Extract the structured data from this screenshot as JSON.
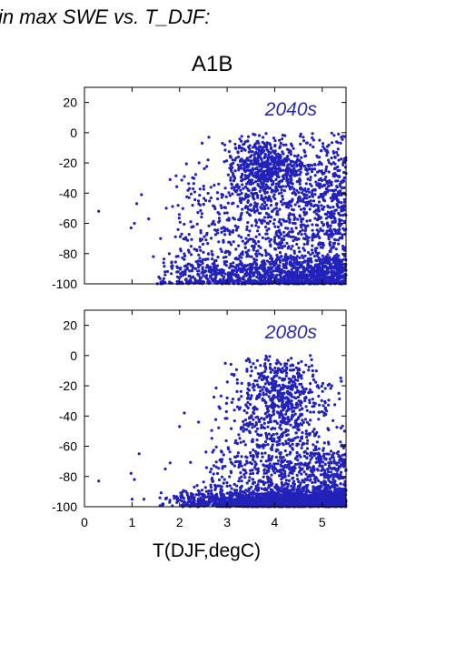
{
  "header": {
    "text": "in max SWE vs. T_DJF:"
  },
  "scenario_title": "A1B",
  "xaxis_label": "T(DJF,degC)",
  "colors": {
    "points": "#2222bb",
    "axis": "#000000",
    "panel_label": "#2a2aaa"
  },
  "chart_data": [
    {
      "type": "scatter",
      "panel_label": "2040s",
      "xlim": [
        0,
        5.5
      ],
      "ylim": [
        -100,
        30
      ],
      "xticks": [
        0,
        1,
        2,
        3,
        4,
        5
      ],
      "yticks": [
        20,
        0,
        -20,
        -40,
        -60,
        -80,
        -100
      ],
      "xtick_labels_shown": false,
      "grid": false,
      "points": [
        [
          0.3,
          -52
        ],
        [
          0.98,
          -63
        ],
        [
          1.05,
          -60
        ],
        [
          1.1,
          -47
        ],
        [
          1.2,
          -41
        ],
        [
          1.35,
          -57
        ],
        [
          1.45,
          -82
        ],
        [
          1.6,
          -70
        ],
        [
          1.72,
          -50
        ],
        [
          1.8,
          -31
        ],
        [
          2.1,
          -29
        ],
        [
          2.6,
          -18
        ],
        [
          2.9,
          -7
        ],
        [
          3.3,
          -10
        ],
        [
          3.55,
          -1
        ],
        [
          3.75,
          -22
        ],
        [
          3.9,
          -28
        ],
        [
          4.1,
          -5
        ],
        [
          4.3,
          -13
        ],
        [
          4.6,
          -3
        ],
        [
          4.75,
          -8
        ],
        [
          5.3,
          -6
        ],
        [
          5.4,
          -3
        ]
      ],
      "sample_distribution": {
        "description": "dense cloud of several thousand points, strongest near -100 for T above 3 degC, a cluster near (3.8, -22)",
        "clusters": [
          {
            "n": 1300,
            "x_range": [
              1.4,
              5.5
            ],
            "x_skew": 0.55,
            "y_center": -95,
            "y_spread": 7,
            "y_min": -100
          },
          {
            "n": 950,
            "x_range": [
              1.8,
              5.5
            ],
            "x_skew": 0.6,
            "y_center": -62,
            "y_spread": 22,
            "y_min": -100
          },
          {
            "n": 380,
            "x_center": 3.8,
            "x_spread": 0.35,
            "y_center": -22,
            "y_spread": 9,
            "y_min": -100
          },
          {
            "n": 450,
            "x_range": [
              3.0,
              5.5
            ],
            "x_skew": 0.8,
            "y_center": -30,
            "y_spread": 16,
            "y_min": -100
          }
        ]
      }
    },
    {
      "type": "scatter",
      "panel_label": "2080s",
      "xlim": [
        0,
        5.5
      ],
      "ylim": [
        -100,
        30
      ],
      "xticks": [
        0,
        1,
        2,
        3,
        4,
        5
      ],
      "yticks": [
        20,
        0,
        -20,
        -40,
        -60,
        -80,
        -100
      ],
      "xtick_labels_shown": true,
      "grid": false,
      "points": [
        [
          0.3,
          -83
        ],
        [
          0.98,
          -78
        ],
        [
          1.05,
          -82
        ],
        [
          1.15,
          -65
        ],
        [
          1.0,
          -95
        ],
        [
          1.25,
          -95
        ],
        [
          1.7,
          -75
        ],
        [
          1.8,
          -71
        ],
        [
          2.1,
          -38
        ],
        [
          2.0,
          -47
        ],
        [
          2.4,
          -44
        ],
        [
          2.85,
          -35
        ],
        [
          3.1,
          -31
        ],
        [
          3.3,
          -27
        ],
        [
          3.5,
          -28
        ],
        [
          3.55,
          -19
        ],
        [
          3.6,
          -8
        ],
        [
          4.2,
          -10
        ],
        [
          4.5,
          -5
        ],
        [
          4.75,
          0
        ],
        [
          4.8,
          -10
        ],
        [
          5.2,
          -20
        ],
        [
          5.35,
          -25
        ],
        [
          5.4,
          -17
        ]
      ],
      "sample_distribution": {
        "description": "very dense band at -95 to -100 from 1.5 degC upward, with a cloud reaching up to 0 for T 3.5-5 degC",
        "clusters": [
          {
            "n": 2200,
            "x_range": [
              1.5,
              5.5
            ],
            "x_skew": 0.45,
            "y_center": -97,
            "y_spread": 4,
            "y_min": -100
          },
          {
            "n": 700,
            "x_range": [
              2.5,
              5.5
            ],
            "x_skew": 0.7,
            "y_center": -78,
            "y_spread": 12,
            "y_min": -100
          },
          {
            "n": 520,
            "x_center": 4.1,
            "x_spread": 0.55,
            "y_center": -40,
            "y_spread": 18,
            "y_min": -100
          },
          {
            "n": 220,
            "x_center": 4.2,
            "x_spread": 0.35,
            "y_center": -18,
            "y_spread": 10,
            "y_min": -100
          }
        ]
      }
    }
  ]
}
